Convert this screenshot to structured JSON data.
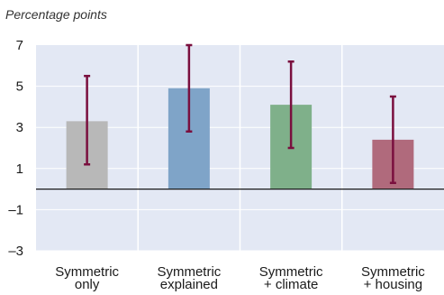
{
  "chart_data": {
    "type": "bar",
    "unit_label": "Percentage points",
    "categories": [
      [
        "Symmetric",
        "only"
      ],
      [
        "Symmetric",
        "explained"
      ],
      [
        "Symmetric",
        "+ climate"
      ],
      [
        "Symmetric",
        "+ housing"
      ]
    ],
    "values": [
      3.3,
      4.9,
      4.1,
      2.4
    ],
    "error_low": [
      1.2,
      2.8,
      2.0,
      0.3
    ],
    "error_high": [
      5.5,
      7.0,
      6.2,
      4.5
    ],
    "ylim": [
      -3,
      7
    ],
    "yticks": [
      7,
      5,
      3,
      1,
      -1,
      -3
    ],
    "ytick_labels": [
      "7",
      "5",
      "3",
      "1",
      "–1",
      "–3"
    ],
    "grid": true,
    "colors": {
      "bars": [
        "#b8b8b8",
        "#7fa4c8",
        "#7fb08a",
        "#b06a7c"
      ],
      "error_bar": "#7a0f3e",
      "plot_bg": "#e3e8f4",
      "grid": "#ffffff",
      "zero_line": "#1a1a1a"
    }
  }
}
